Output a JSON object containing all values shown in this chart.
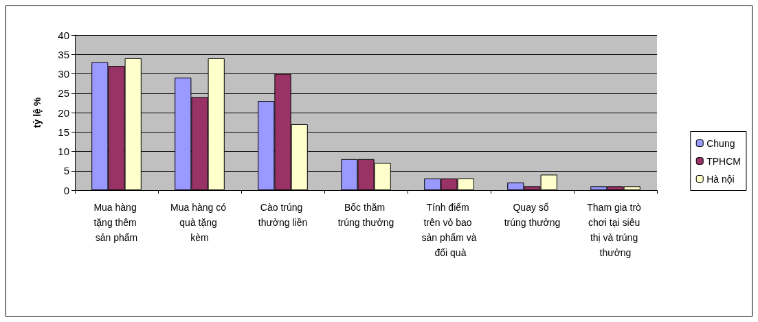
{
  "chart_data": {
    "type": "bar",
    "ylabel": "tỷ lệ %",
    "categories": [
      "Mua hàng tặng thêm sản phẩm",
      "Mua hàng có quà tặng kèm",
      "Cào trúng thưởng liền",
      "Bốc thăm trúng thưởng",
      "Tính điểm trên vỏ bao sản phẩm và đổi quà",
      "Quay số trúng thưởng",
      "Tham gia trò chơi tại siêu thị và trúng thưởng"
    ],
    "series": [
      {
        "name": "Chung",
        "color": "#9999ff",
        "values": [
          33,
          29,
          23,
          8,
          3,
          2,
          1
        ]
      },
      {
        "name": "TPHCM",
        "color": "#993366",
        "values": [
          32,
          24,
          30,
          8,
          3,
          1,
          1
        ]
      },
      {
        "name": "Hà nội",
        "color": "#ffffcc",
        "values": [
          34,
          34,
          17,
          7,
          3,
          4,
          1
        ]
      }
    ],
    "ylim": [
      0,
      40
    ],
    "yticks": [
      0,
      5,
      10,
      15,
      20,
      25,
      30,
      35,
      40
    ],
    "grid": "y",
    "legend": "right"
  }
}
